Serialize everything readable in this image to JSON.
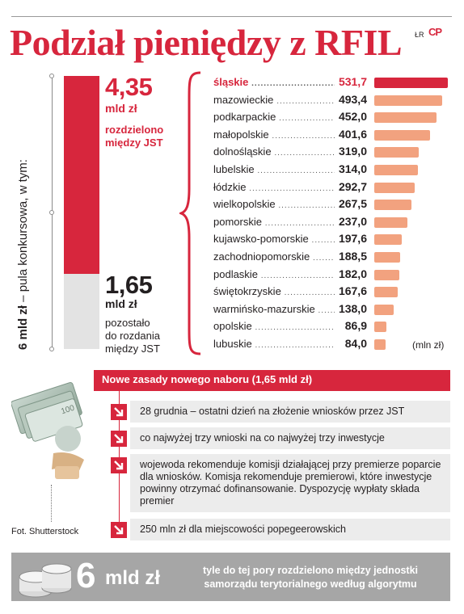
{
  "header": {
    "title": "Podział pieniędzy z RFIL",
    "credit": "ŁR",
    "logo_text": "CP"
  },
  "overview": {
    "vertical_label_bold": "6 mld zł",
    "vertical_label_rest": " – pula konkursowa, w tym:",
    "distributed": {
      "value": "4,35",
      "unit": "mld zł",
      "desc_line1": "rozdzielono",
      "desc_line2": "między JST",
      "amount": 4.35
    },
    "remaining": {
      "value": "1,65",
      "unit": "mld zł",
      "desc_line1": "pozostało",
      "desc_line2": "do rozdania",
      "desc_line3": "między JST",
      "amount": 1.65
    }
  },
  "chart_data": {
    "type": "bar",
    "orientation": "horizontal",
    "categories": [
      "śląskie",
      "mazowieckie",
      "podkarpackie",
      "małopolskie",
      "dolnośląskie",
      "lubelskie",
      "łódzkie",
      "wielkopolskie",
      "pomorskie",
      "kujawsko-pomorskie",
      "zachodniopomorskie",
      "podlaskie",
      "świętokrzyskie",
      "warmińsko-mazurskie",
      "opolskie",
      "lubuskie"
    ],
    "values": [
      531.7,
      493.4,
      452.0,
      401.6,
      319.0,
      314.0,
      292.7,
      267.5,
      237.0,
      197.6,
      188.5,
      182.0,
      167.6,
      138.0,
      86.9,
      84.0
    ],
    "value_labels": [
      "531,7",
      "493,4",
      "452,0",
      "401,6",
      "319,0",
      "314,0",
      "292,7",
      "267,5",
      "237,0",
      "197,6",
      "188,5",
      "182,0",
      "167,6",
      "138,0",
      "86,9",
      "84,0"
    ],
    "unit_note": "(mln zł)",
    "xlim": [
      0,
      531.7
    ],
    "colors": {
      "highlight": "#d7263d",
      "default": "#f2a27f"
    }
  },
  "photo": {
    "caption": "Fot. Shutterstock"
  },
  "rules": {
    "header": "Nowe zasady nowego naboru (1,65 mld zł)",
    "items": [
      {
        "text": "28 grudnia – ostatni dzień na złożenie wniosków przez JST"
      },
      {
        "text": "co najwyżej trzy wnioski na co najwyżej trzy inwestycje"
      },
      {
        "text": "wojewoda rekomenduje komisji działającej przy premierze poparcie dla wniosków. Komisja rekomenduje premierowi, które inwestycje powinny otrzymać dofinansowanie. Dyspozycję wypłaty składa premier"
      },
      {
        "text": "250 mln zł dla miejscowości popegeerowskich"
      }
    ]
  },
  "banner": {
    "number": "6",
    "unit": "mld zł",
    "text_line1": "tyle do tej pory rozdzielono między jednostki",
    "text_line2": "samorządu terytorialnego według algorytmu"
  },
  "colors": {
    "accent": "#d7263d",
    "bar_light": "#f2a27f",
    "remaining_grey": "#e3e3e3",
    "banner_grey": "#a6a6a6"
  }
}
